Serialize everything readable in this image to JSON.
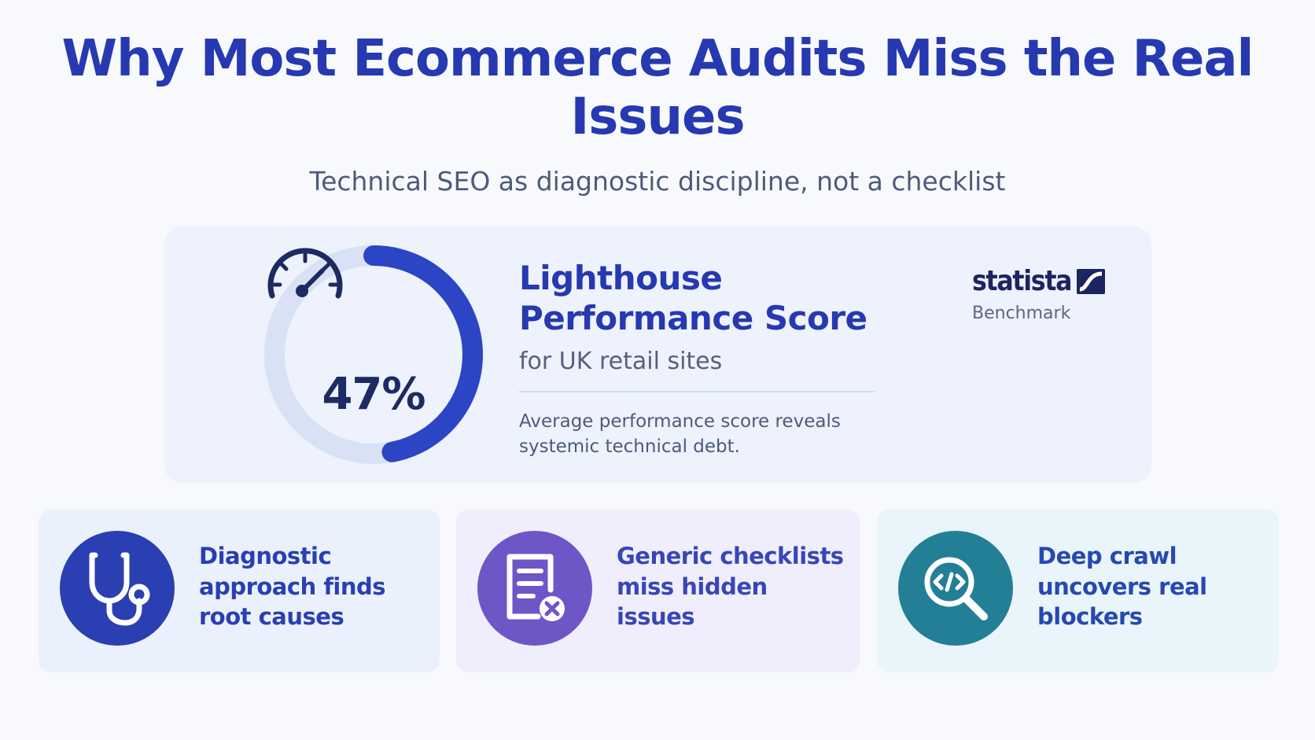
{
  "header": {
    "title": "Why Most Ecommerce Audits Miss the Real Issues",
    "subtitle": "Technical SEO as diagnostic discipline, not a checklist"
  },
  "metric": {
    "value_text": "47%",
    "value_fraction": 0.47,
    "title": "Lighthouse Performance Score",
    "subtitle": "for UK retail sites",
    "description": "Average performance score reveals systemic technical debt.",
    "icon": "speedometer-icon",
    "source_name": "statista",
    "source_label": "Benchmark"
  },
  "features": [
    {
      "text": "Diagnostic approach finds root causes",
      "icon": "stethoscope-icon",
      "color": "#2a3fb2"
    },
    {
      "text": "Generic checklists miss hidden issues",
      "icon": "checklist-x-icon",
      "color": "#6f56c6"
    },
    {
      "text": "Deep crawl uncovers real blockers",
      "icon": "code-search-icon",
      "color": "#237f95"
    }
  ],
  "colors": {
    "accent": "#2639b0",
    "gauge_track": "#d9e2f5",
    "gauge_fill": "#2b45c4",
    "background": "#f7f9fd"
  }
}
